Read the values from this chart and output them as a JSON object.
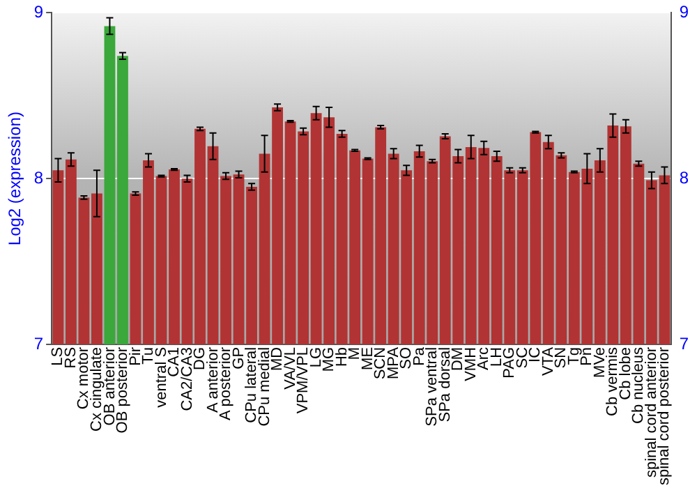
{
  "chart_data": {
    "type": "bar",
    "ylabel": "Log2 (expression)",
    "categories": [
      "LS",
      "RS",
      "Cx motor",
      "Cx cingulate",
      "OB anterior",
      "OB posterior",
      "Pir",
      "Tu",
      "ventral S",
      "CA1",
      "CA2/CA3",
      "DG",
      "A anterior",
      "A posterior",
      "GP",
      "CPu lateral",
      "CPu medial",
      "MD",
      "VA/VL",
      "VPM/VPL",
      "LG",
      "MG",
      "Hb",
      "M",
      "ME",
      "SCN",
      "MPA",
      "SO",
      "Pa",
      "SPa ventral",
      "SPa dorsal",
      "DM",
      "VMH",
      "Arc",
      "LH",
      "PAG",
      "SC",
      "IC",
      "VTA",
      "SN",
      "Tg",
      "Pn",
      "MVe",
      "Cb vermis",
      "Cb lobe",
      "Cb nucleus",
      "spinal cord anterior",
      "spinal cord posterior"
    ],
    "values": [
      8.05,
      8.115,
      7.885,
      7.91,
      8.92,
      8.74,
      7.91,
      8.11,
      8.015,
      8.055,
      8.0,
      8.3,
      8.195,
      8.015,
      8.025,
      7.95,
      8.15,
      8.43,
      8.345,
      8.285,
      8.395,
      8.37,
      8.27,
      8.17,
      8.12,
      8.31,
      8.15,
      8.05,
      8.165,
      8.105,
      8.255,
      8.135,
      8.19,
      8.185,
      8.135,
      8.05,
      8.05,
      8.28,
      8.22,
      8.14,
      8.04,
      8.06,
      8.11,
      8.32,
      8.315,
      8.09,
      7.99,
      8.02
    ],
    "errors": [
      0.07,
      0.04,
      0.01,
      0.14,
      0.05,
      0.02,
      0.01,
      0.04,
      0.005,
      0.005,
      0.02,
      0.01,
      0.08,
      0.02,
      0.02,
      0.02,
      0.11,
      0.02,
      0.005,
      0.02,
      0.04,
      0.06,
      0.02,
      0.005,
      0.005,
      0.01,
      0.03,
      0.03,
      0.035,
      0.01,
      0.015,
      0.04,
      0.07,
      0.04,
      0.03,
      0.015,
      0.015,
      0.005,
      0.04,
      0.015,
      0.005,
      0.09,
      0.07,
      0.07,
      0.04,
      0.015,
      0.05,
      0.05
    ],
    "colors": [
      "#b23333",
      "#b23333",
      "#b23333",
      "#b23333",
      "#3aa83a",
      "#3aa83a",
      "#b23333",
      "#b23333",
      "#b23333",
      "#b23333",
      "#b23333",
      "#b23333",
      "#b23333",
      "#b23333",
      "#b23333",
      "#b23333",
      "#b23333",
      "#b23333",
      "#b23333",
      "#b23333",
      "#b23333",
      "#b23333",
      "#b23333",
      "#b23333",
      "#b23333",
      "#b23333",
      "#b23333",
      "#b23333",
      "#b23333",
      "#b23333",
      "#b23333",
      "#b23333",
      "#b23333",
      "#b23333",
      "#b23333",
      "#b23333",
      "#b23333",
      "#b23333",
      "#b23333",
      "#b23333",
      "#b23333",
      "#b23333",
      "#b23333",
      "#b23333",
      "#b23333",
      "#b23333",
      "#b23333",
      "#b23333"
    ],
    "ylim": [
      7,
      9
    ],
    "yticks": [
      7,
      8,
      9
    ],
    "y2lim": [
      7,
      9
    ],
    "y2ticks": [
      7,
      8,
      9
    ],
    "grid": "y",
    "legend": false
  }
}
